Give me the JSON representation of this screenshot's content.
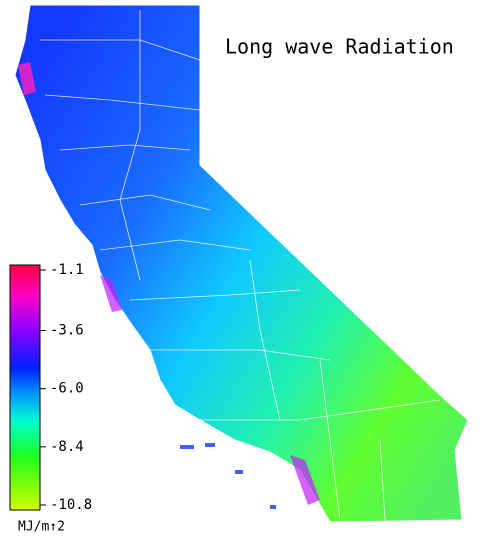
{
  "map": {
    "title": "Long wave Radiation",
    "colorbar": {
      "unit": "MJ/m↑2",
      "lim": [
        -10.8,
        -1.1
      ],
      "ticks": [
        -1.1,
        -3.6,
        {
          "value": -6.0,
          "label": "-6.0"
        },
        -8.4,
        -10.8
      ]
    }
  }
}
